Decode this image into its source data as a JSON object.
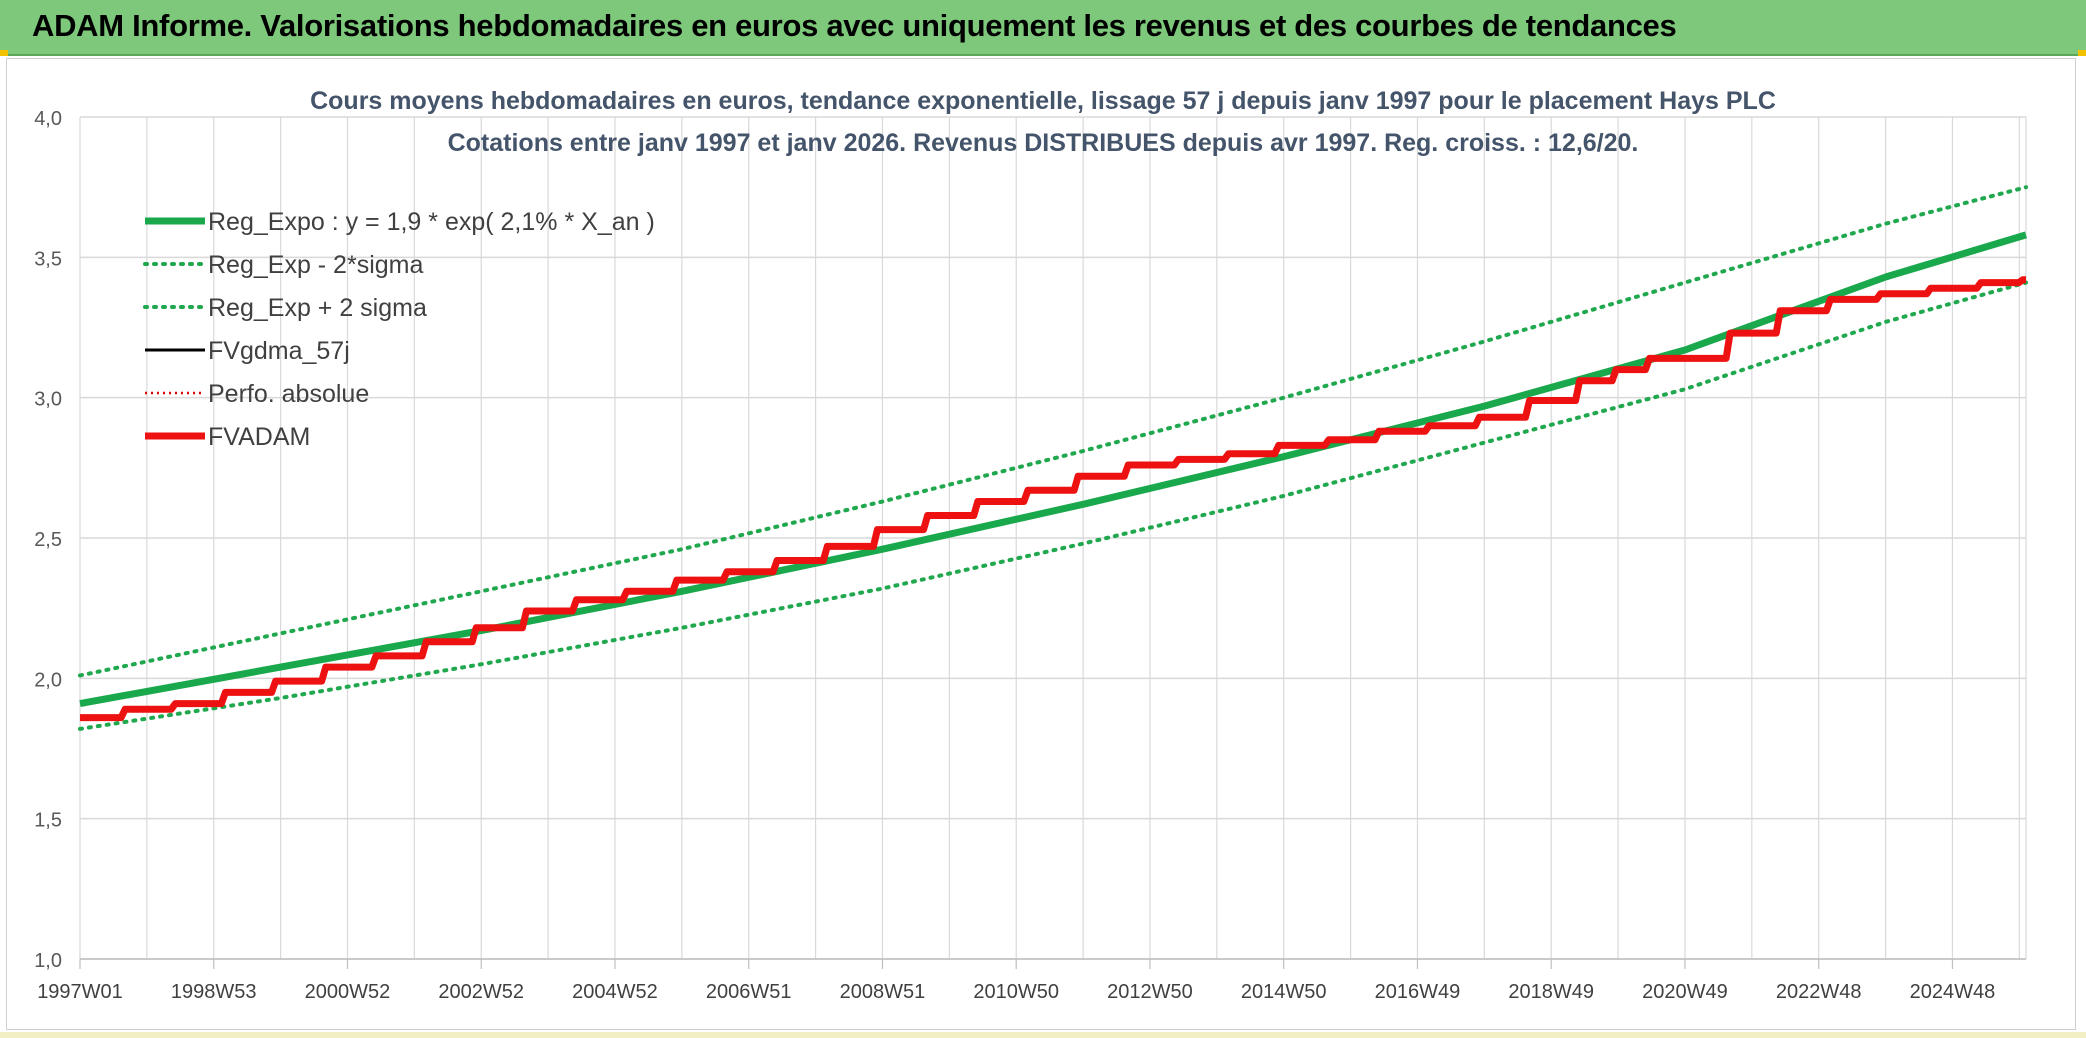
{
  "banner": {
    "title": "ADAM Informe. Valorisations hebdomadaires en euros avec uniquement les revenus et des courbes de tendances"
  },
  "colors": {
    "banner_bg": "#7dc87a",
    "reg_green": "#1aa84c",
    "dotted_green": "#20a84e",
    "fv_black": "#000000",
    "perfo_red": "#e00000",
    "fvadam_red": "#ee1111",
    "grid": "#d9d9d9"
  },
  "chart_data": {
    "type": "line",
    "title": "Cours moyens hebdomadaires en euros, tendance exponentielle, lissage 57 j depuis janv 1997 pour le placement Hays PLC",
    "subtitle": "Cotations entre janv 1997 et janv 2026. Revenus DISTRIBUES depuis avr 1997. Reg. croiss. : 12,6/20.",
    "xlabel": "",
    "ylabel": "",
    "ylim": [
      1.0,
      4.0
    ],
    "yticks": [
      "1,0",
      "1,5",
      "2,0",
      "2,5",
      "3,0",
      "3,5",
      "4,0"
    ],
    "xlim": [
      1997.0,
      2026.1
    ],
    "xticks": [
      {
        "label": "1997W01",
        "x": 1997.0
      },
      {
        "label": "1998W53",
        "x": 1999.0
      },
      {
        "label": "2000W52",
        "x": 2001.0
      },
      {
        "label": "2002W52",
        "x": 2003.0
      },
      {
        "label": "2004W52",
        "x": 2005.0
      },
      {
        "label": "2006W51",
        "x": 2007.0
      },
      {
        "label": "2008W51",
        "x": 2009.0
      },
      {
        "label": "2010W50",
        "x": 2011.0
      },
      {
        "label": "2012W50",
        "x": 2013.0
      },
      {
        "label": "2014W50",
        "x": 2015.0
      },
      {
        "label": "2016W49",
        "x": 2017.0
      },
      {
        "label": "2018W49",
        "x": 2019.0
      },
      {
        "label": "2020W49",
        "x": 2021.0
      },
      {
        "label": "2022W48",
        "x": 2023.0
      },
      {
        "label": "2024W48",
        "x": 2025.0
      }
    ],
    "grid": true,
    "legend_position": "top-left",
    "series": [
      {
        "name": "Reg_Expo : y = 1,9 * exp( 2,1% *  X_an )",
        "style": "solid-thick",
        "color": "#1aa84c",
        "x": [
          1997.0,
          2000.0,
          2003.0,
          2006.0,
          2009.0,
          2012.0,
          2015.0,
          2018.0,
          2021.0,
          2024.0,
          2026.1
        ],
        "y": [
          1.91,
          2.04,
          2.17,
          2.31,
          2.46,
          2.62,
          2.79,
          2.97,
          3.17,
          3.43,
          3.58
        ]
      },
      {
        "name": "Reg_Exp - 2*sigma",
        "style": "dotted",
        "color": "#20a84e",
        "x": [
          1997.0,
          2000.0,
          2003.0,
          2006.0,
          2009.0,
          2012.0,
          2015.0,
          2018.0,
          2021.0,
          2024.0,
          2026.1
        ],
        "y": [
          1.82,
          1.93,
          2.05,
          2.18,
          2.32,
          2.48,
          2.65,
          2.84,
          3.03,
          3.27,
          3.41
        ]
      },
      {
        "name": "Reg_Exp + 2 sigma",
        "style": "dotted",
        "color": "#20a84e",
        "x": [
          1997.0,
          2000.0,
          2003.0,
          2006.0,
          2009.0,
          2012.0,
          2015.0,
          2018.0,
          2021.0,
          2024.0,
          2026.1
        ],
        "y": [
          2.01,
          2.16,
          2.31,
          2.46,
          2.63,
          2.81,
          3.0,
          3.2,
          3.41,
          3.62,
          3.75
        ]
      },
      {
        "name": "FVgdma_57j",
        "style": "solid",
        "color": "#000000",
        "x": [
          1997.0,
          1997.75,
          1998.5,
          1999.25,
          2000.0,
          2000.75,
          2001.5,
          2002.25,
          2003.0,
          2003.75,
          2004.5,
          2005.25,
          2006.0,
          2006.75,
          2007.5,
          2008.25,
          2009.0,
          2009.75,
          2010.5,
          2011.25,
          2012.0,
          2012.75,
          2013.5,
          2014.25,
          2015.0,
          2015.75,
          2016.5,
          2017.25,
          2018.0,
          2018.75,
          2019.5,
          2020.0,
          2020.5,
          2021.0,
          2021.75,
          2022.5,
          2023.25,
          2024.0,
          2024.75,
          2025.5,
          2026.1
        ],
        "y": [
          1.86,
          1.89,
          1.91,
          1.95,
          1.99,
          2.04,
          2.08,
          2.13,
          2.18,
          2.24,
          2.28,
          2.31,
          2.35,
          2.38,
          2.42,
          2.47,
          2.53,
          2.58,
          2.63,
          2.67,
          2.72,
          2.76,
          2.78,
          2.8,
          2.83,
          2.85,
          2.88,
          2.9,
          2.93,
          2.99,
          3.06,
          3.1,
          3.14,
          3.14,
          3.23,
          3.31,
          3.35,
          3.37,
          3.39,
          3.41,
          3.42
        ]
      },
      {
        "name": "Perfo. absolue",
        "style": "dotted-thin",
        "color": "#e00000",
        "x": [],
        "y": []
      },
      {
        "name": "FVADAM",
        "style": "solid-thick",
        "color": "#ee1111",
        "x": [
          1997.0,
          1997.75,
          1998.5,
          1999.25,
          2000.0,
          2000.75,
          2001.5,
          2002.25,
          2003.0,
          2003.75,
          2004.5,
          2005.25,
          2006.0,
          2006.75,
          2007.5,
          2008.25,
          2009.0,
          2009.75,
          2010.5,
          2011.25,
          2012.0,
          2012.75,
          2013.5,
          2014.25,
          2015.0,
          2015.75,
          2016.5,
          2017.25,
          2018.0,
          2018.75,
          2019.5,
          2020.0,
          2020.5,
          2021.0,
          2021.75,
          2022.5,
          2023.25,
          2024.0,
          2024.75,
          2025.5,
          2026.1
        ],
        "y": [
          1.86,
          1.89,
          1.91,
          1.95,
          1.99,
          2.04,
          2.08,
          2.13,
          2.18,
          2.24,
          2.28,
          2.31,
          2.35,
          2.38,
          2.42,
          2.47,
          2.53,
          2.58,
          2.63,
          2.67,
          2.72,
          2.76,
          2.78,
          2.8,
          2.83,
          2.85,
          2.88,
          2.9,
          2.93,
          2.99,
          3.06,
          3.1,
          3.14,
          3.14,
          3.23,
          3.31,
          3.35,
          3.37,
          3.39,
          3.41,
          3.42
        ]
      }
    ]
  }
}
